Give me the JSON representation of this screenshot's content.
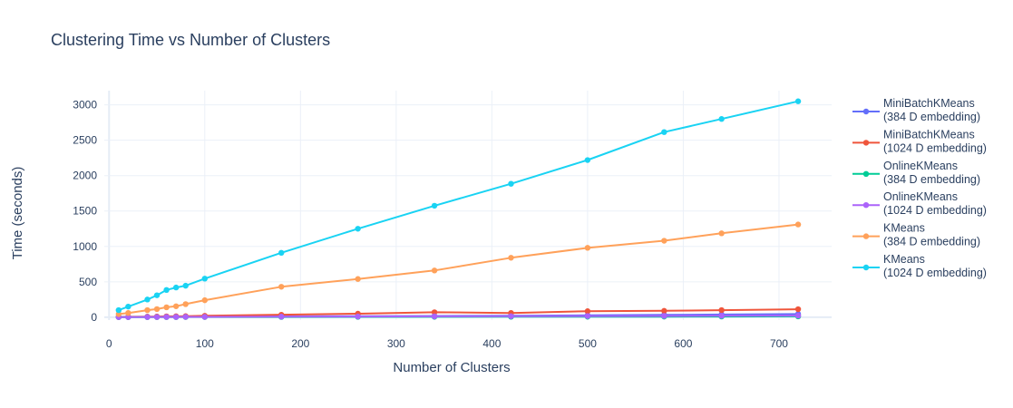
{
  "chart_data": {
    "type": "line",
    "title": "Clustering Time vs Number of Clusters",
    "xlabel": "Number of Clusters",
    "ylabel": "Time (seconds)",
    "xlim": [
      -5,
      755
    ],
    "ylim": [
      -40,
      3200
    ],
    "xticks": [
      0,
      100,
      200,
      300,
      400,
      500,
      600,
      700
    ],
    "yticks": [
      0,
      500,
      1000,
      1500,
      2000,
      2500,
      3000
    ],
    "grid": true,
    "legend_position": "right",
    "series": [
      {
        "name": "MiniBatchKMeans",
        "subname": "(384 D embedding)",
        "color": "#636efa",
        "x": [
          10,
          20,
          40,
          50,
          60,
          70,
          80,
          100,
          180,
          260,
          340,
          420,
          500,
          580,
          640,
          720
        ],
        "y": [
          3,
          3,
          4,
          5,
          6,
          6,
          7,
          8,
          12,
          15,
          18,
          22,
          27,
          33,
          38,
          45
        ]
      },
      {
        "name": "MiniBatchKMeans",
        "subname": "(1024 D embedding)",
        "color": "#ef553b",
        "x": [
          10,
          20,
          40,
          50,
          60,
          70,
          80,
          100,
          180,
          260,
          340,
          420,
          500,
          580,
          640,
          720
        ],
        "y": [
          5,
          6,
          8,
          10,
          12,
          13,
          15,
          20,
          35,
          50,
          70,
          60,
          85,
          90,
          100,
          113
        ]
      },
      {
        "name": "OnlineKMeans",
        "subname": "(384 D embedding)",
        "color": "#00cc96",
        "x": [
          10,
          20,
          40,
          50,
          60,
          70,
          80,
          100,
          180,
          260,
          340,
          420,
          500,
          580,
          640,
          720
        ],
        "y": [
          1,
          1,
          2,
          2,
          2,
          2,
          3,
          3,
          4,
          5,
          6,
          7,
          8,
          9,
          10,
          12
        ]
      },
      {
        "name": "OnlineKMeans",
        "subname": "(1024 D embedding)",
        "color": "#ab63fa",
        "x": [
          10,
          20,
          40,
          50,
          60,
          70,
          80,
          100,
          180,
          260,
          340,
          420,
          500,
          580,
          640,
          720
        ],
        "y": [
          2,
          2,
          3,
          3,
          4,
          4,
          5,
          5,
          8,
          10,
          12,
          14,
          16,
          18,
          20,
          23
        ]
      },
      {
        "name": "KMeans",
        "subname": "(384 D embedding)",
        "color": "#ffa15a",
        "x": [
          10,
          20,
          40,
          50,
          60,
          70,
          80,
          100,
          180,
          260,
          340,
          420,
          500,
          580,
          640,
          720
        ],
        "y": [
          45,
          60,
          100,
          115,
          140,
          155,
          185,
          240,
          430,
          540,
          660,
          840,
          980,
          1080,
          1185,
          1310
        ]
      },
      {
        "name": "KMeans",
        "subname": "(1024 D embedding)",
        "color": "#19d3f3",
        "x": [
          10,
          20,
          40,
          50,
          60,
          70,
          80,
          100,
          180,
          260,
          340,
          420,
          500,
          580,
          640,
          720
        ],
        "y": [
          100,
          150,
          250,
          310,
          385,
          420,
          445,
          545,
          910,
          1250,
          1575,
          1885,
          2220,
          2615,
          2800,
          3050
        ]
      }
    ]
  }
}
